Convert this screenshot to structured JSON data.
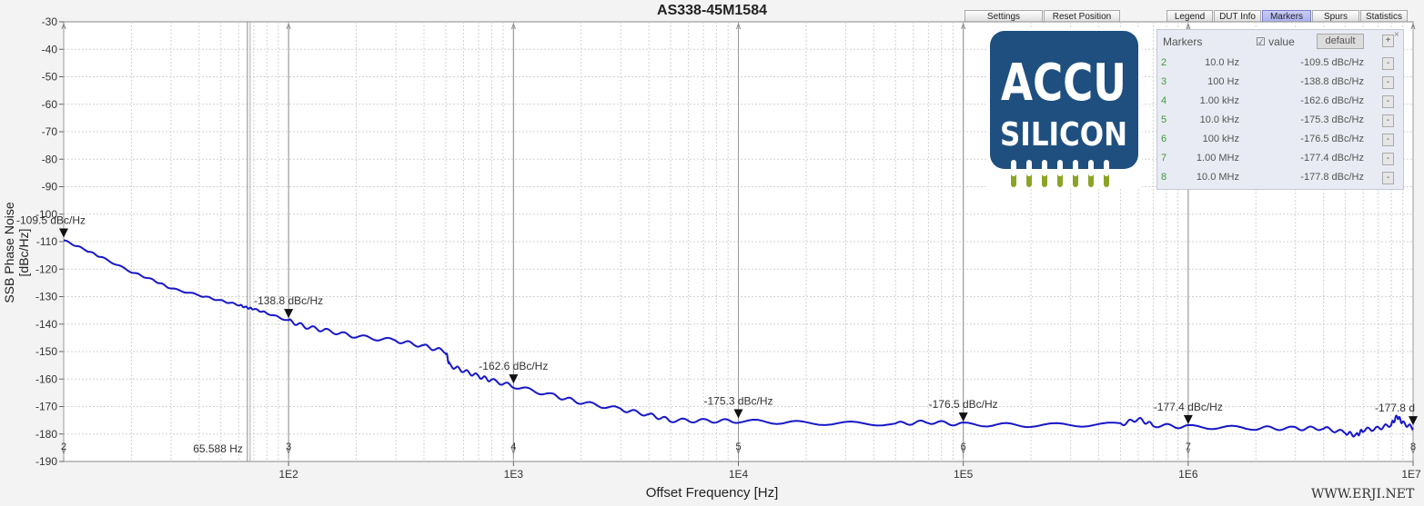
{
  "title": "AS338-45M1584",
  "toolbar": {
    "settings": "Settings",
    "reset_position": "Reset Position",
    "legend": "Legend",
    "dut_info": "DUT Info",
    "markers": "Markers",
    "spurs": "Spurs",
    "statistics": "Statistics"
  },
  "axes": {
    "ylabel": "SSB Phase Noise [dBc/Hz]",
    "xlabel": "Offset Frequency [Hz]",
    "cursor_readout": "65.588 Hz"
  },
  "markers_panel": {
    "title": "Markers",
    "value_checkbox": "value",
    "value_checked": true,
    "default_button": "default",
    "plus": "+",
    "close": "×",
    "minus": "-",
    "rows": [
      {
        "idx": "2",
        "freq": "10.0 Hz",
        "value": "-109.5 dBc/Hz"
      },
      {
        "idx": "3",
        "freq": "100 Hz",
        "value": "-138.8 dBc/Hz"
      },
      {
        "idx": "4",
        "freq": "1.00 kHz",
        "value": "-162.6 dBc/Hz"
      },
      {
        "idx": "5",
        "freq": "10.0 kHz",
        "value": "-175.3 dBc/Hz"
      },
      {
        "idx": "6",
        "freq": "100 kHz",
        "value": "-176.5 dBc/Hz"
      },
      {
        "idx": "7",
        "freq": "1.00 MHz",
        "value": "-177.4 dBc/Hz"
      },
      {
        "idx": "8",
        "freq": "10.0 MHz",
        "value": "-177.8 dBc/Hz"
      }
    ]
  },
  "logo": {
    "line1": "ACCU",
    "line2": "SILICON",
    "brand_color": "#1e4f7f",
    "pin_color": "#8aa526"
  },
  "watermark": "WWW.ERJI.NET",
  "colors": {
    "trace": "#1717c8",
    "plot_bg": "#ffffff",
    "active_tab": "#a9adef"
  },
  "chart_data": {
    "type": "line",
    "title": "AS338-45M1584",
    "xlabel": "Offset Frequency [Hz]",
    "ylabel": "SSB Phase Noise [dBc/Hz]",
    "xscale": "log",
    "xlim": [
      10,
      10000000
    ],
    "ylim": [
      -190,
      -30
    ],
    "yticks": [
      -30,
      -40,
      -50,
      -60,
      -70,
      -80,
      -90,
      -100,
      -110,
      -120,
      -130,
      -140,
      -150,
      -160,
      -170,
      -180,
      -190
    ],
    "xtick_labels": [
      "1E2",
      "1E3",
      "1E4",
      "1E5",
      "1E6",
      "1E7"
    ],
    "grid": true,
    "series": [
      {
        "x": [
          10,
          12.5,
          15,
          20,
          25,
          30,
          40,
          50,
          60,
          65,
          70,
          80,
          100,
          120,
          150,
          200,
          300,
          400,
          500,
          520,
          600,
          700,
          800,
          1000,
          1500,
          2000,
          3000,
          4000,
          5000,
          7000,
          10000,
          20000,
          50000,
          70000,
          100000,
          200000,
          500000,
          600000,
          700000,
          1000000,
          2000000,
          3000000,
          4000000,
          5000000,
          5600000,
          6000000,
          7000000,
          8000000,
          8500000,
          9000000,
          10000000
        ],
        "y": [
          -109.5,
          -113,
          -116,
          -121,
          -124,
          -127,
          -129.5,
          -131.5,
          -133,
          -134,
          -134.5,
          -136,
          -138.8,
          -141,
          -142.5,
          -144.5,
          -146,
          -148,
          -150,
          -155,
          -157,
          -159,
          -160.5,
          -162.6,
          -166,
          -168.5,
          -171,
          -173,
          -175,
          -175.2,
          -175.3,
          -176,
          -176.3,
          -175.6,
          -176.5,
          -176.8,
          -176.5,
          -174.5,
          -176.8,
          -177.4,
          -177.8,
          -178,
          -177.9,
          -179.5,
          -180.5,
          -178.5,
          -178,
          -176.5,
          -173.5,
          -176,
          -177.8
        ]
      }
    ],
    "markers": [
      {
        "id": "2",
        "x": 10,
        "y": -109.5,
        "label": "-109.5 dBc/Hz"
      },
      {
        "id": "3",
        "x": 100,
        "y": -138.8,
        "label": "-138.8 dBc/Hz"
      },
      {
        "id": "4",
        "x": 1000,
        "y": -162.6,
        "label": "-162.6 dBc/Hz"
      },
      {
        "id": "5",
        "x": 10000,
        "y": -175.3,
        "label": "-175.3 dBc/Hz"
      },
      {
        "id": "6",
        "x": 100000,
        "y": -176.5,
        "label": "-176.5 dBc/Hz"
      },
      {
        "id": "7",
        "x": 1000000,
        "y": -177.4,
        "label": "-177.4 dBc/Hz"
      },
      {
        "id": "8",
        "x": 10000000,
        "y": -177.8,
        "label": "-177.8 d"
      }
    ],
    "cursor": {
      "x": 65.588,
      "label": "65.588 Hz"
    }
  }
}
